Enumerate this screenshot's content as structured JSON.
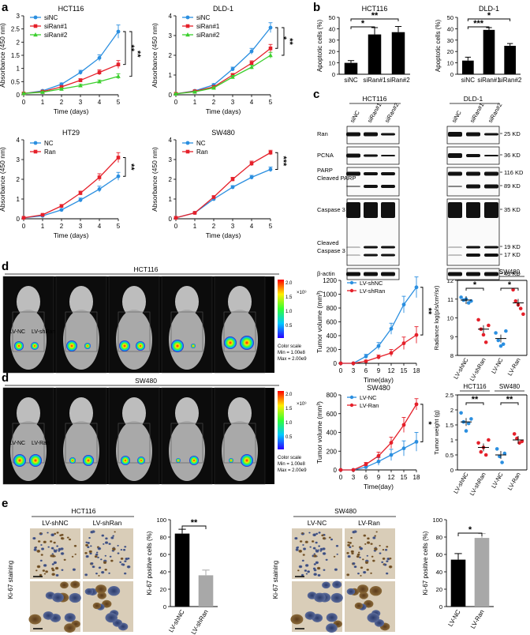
{
  "colors": {
    "blue": "#2b8fe0",
    "red": "#e5202a",
    "green": "#3ccf2e",
    "black": "#000000",
    "gray": "#a8a8a8"
  },
  "panel_letters": {
    "a": "a",
    "b": "b",
    "c": "c",
    "d1": "d",
    "d2": "d",
    "e": "e"
  },
  "stars": {
    "s1": "*",
    "s2": "**",
    "s3": "***"
  },
  "chart_data": [
    {
      "id": "a1",
      "type": "line",
      "title": "HCT116",
      "xlabel": "Time (days)",
      "ylabel": "Absorbance (450 nm)",
      "x": [
        0,
        1,
        2,
        3,
        4,
        5
      ],
      "xlim": [
        0,
        5
      ],
      "ylim": [
        0,
        3
      ],
      "yticks": [
        0,
        0.5,
        1,
        1.5,
        2,
        2.5,
        3
      ],
      "xticks": [
        0,
        1,
        2,
        3,
        4,
        5
      ],
      "series": [
        {
          "name": "siNC",
          "color": "#2b8fe0",
          "marker": "circle",
          "values": [
            0.05,
            0.15,
            0.4,
            0.85,
            1.4,
            2.4
          ],
          "err": [
            0.02,
            0.03,
            0.05,
            0.08,
            0.12,
            0.25
          ]
        },
        {
          "name": "siRan#1",
          "color": "#e5202a",
          "marker": "square",
          "values": [
            0.05,
            0.12,
            0.3,
            0.55,
            0.85,
            1.15
          ],
          "err": [
            0.02,
            0.03,
            0.04,
            0.06,
            0.1,
            0.15
          ]
        },
        {
          "name": "siRan#2",
          "color": "#3ccf2e",
          "marker": "triangle",
          "values": [
            0.05,
            0.1,
            0.22,
            0.35,
            0.5,
            0.7
          ],
          "err": [
            0.02,
            0.02,
            0.03,
            0.05,
            0.06,
            0.1
          ]
        }
      ],
      "sig": [
        "**",
        "**"
      ]
    },
    {
      "id": "a2",
      "type": "line",
      "title": "DLD-1",
      "xlabel": "Time (days)",
      "ylabel": "Absorbance (450 nm)",
      "x": [
        0,
        1,
        2,
        3,
        4,
        5
      ],
      "xlim": [
        0,
        5
      ],
      "ylim": [
        0,
        4
      ],
      "yticks": [
        0,
        1,
        2,
        3,
        4
      ],
      "xticks": [
        0,
        1,
        2,
        3,
        4,
        5
      ],
      "series": [
        {
          "name": "siNC",
          "color": "#2b8fe0",
          "marker": "circle",
          "values": [
            0.05,
            0.2,
            0.5,
            1.3,
            2.2,
            3.4
          ],
          "err": [
            0.02,
            0.03,
            0.06,
            0.1,
            0.15,
            0.25
          ]
        },
        {
          "name": "siRan#1",
          "color": "#e5202a",
          "marker": "square",
          "values": [
            0.05,
            0.18,
            0.4,
            1.0,
            1.6,
            2.35
          ],
          "err": [
            0.02,
            0.03,
            0.05,
            0.08,
            0.12,
            0.2
          ]
        },
        {
          "name": "siRan#2",
          "color": "#3ccf2e",
          "marker": "triangle",
          "values": [
            0.05,
            0.15,
            0.35,
            0.9,
            1.4,
            2.0
          ],
          "err": [
            0.02,
            0.03,
            0.05,
            0.08,
            0.1,
            0.15
          ]
        }
      ],
      "sig": [
        "*",
        "**"
      ]
    },
    {
      "id": "a3",
      "type": "line",
      "title": "HT29",
      "xlabel": "Time (days)",
      "ylabel": "Absorbance (450 nm)",
      "x": [
        0,
        1,
        2,
        3,
        4,
        5
      ],
      "xlim": [
        0,
        5
      ],
      "ylim": [
        0,
        4
      ],
      "yticks": [
        0,
        1,
        2,
        3,
        4
      ],
      "xticks": [
        0,
        1,
        2,
        3,
        4,
        5
      ],
      "series": [
        {
          "name": "NC",
          "color": "#2b8fe0",
          "marker": "circle",
          "values": [
            0.05,
            0.15,
            0.45,
            0.95,
            1.5,
            2.15
          ],
          "err": [
            0.02,
            0.03,
            0.05,
            0.1,
            0.15,
            0.2
          ]
        },
        {
          "name": "Ran",
          "color": "#e5202a",
          "marker": "square",
          "values": [
            0.05,
            0.2,
            0.65,
            1.3,
            2.1,
            3.1
          ],
          "err": [
            0.02,
            0.03,
            0.06,
            0.1,
            0.18,
            0.25
          ]
        }
      ],
      "sig": [
        "**"
      ]
    },
    {
      "id": "a4",
      "type": "line",
      "title": "SW480",
      "xlabel": "Time (days)",
      "ylabel": "Absorbance (450 nm)",
      "x": [
        0,
        1,
        2,
        3,
        4,
        5
      ],
      "xlim": [
        0,
        5
      ],
      "ylim": [
        0,
        4
      ],
      "yticks": [
        0,
        1,
        2,
        3,
        4
      ],
      "xticks": [
        0,
        1,
        2,
        3,
        4,
        5
      ],
      "series": [
        {
          "name": "NC",
          "color": "#2b8fe0",
          "marker": "circle",
          "values": [
            0.05,
            0.3,
            1.0,
            1.6,
            2.1,
            2.5
          ],
          "err": [
            0.02,
            0.03,
            0.05,
            0.08,
            0.1,
            0.12
          ]
        },
        {
          "name": "Ran",
          "color": "#e5202a",
          "marker": "square",
          "values": [
            0.05,
            0.3,
            1.1,
            2.0,
            2.8,
            3.35
          ],
          "err": [
            0.02,
            0.03,
            0.06,
            0.1,
            0.12,
            0.12
          ]
        }
      ],
      "sig": [
        "***"
      ]
    },
    {
      "id": "b1",
      "type": "bar",
      "title": "HCT116",
      "ylabel": "Apoptotic cells (%)",
      "categories": [
        "siNC",
        "siRan#1",
        "siRan#2"
      ],
      "values": [
        10,
        35,
        37
      ],
      "err": [
        2,
        6,
        5
      ],
      "ylim": [
        0,
        50
      ],
      "yticks": [
        0,
        10,
        20,
        30,
        40,
        50
      ],
      "sig": [
        "*",
        "**"
      ]
    },
    {
      "id": "b2",
      "type": "bar",
      "title": "DLD-1",
      "ylabel": "Apoptotic cells (%)",
      "categories": [
        "siNC",
        "siRan#1",
        "siRan#2"
      ],
      "values": [
        12,
        39,
        25
      ],
      "err": [
        3,
        2,
        2
      ],
      "ylim": [
        0,
        50
      ],
      "yticks": [
        0,
        10,
        20,
        30,
        40,
        50
      ],
      "sig": [
        "***",
        "*"
      ]
    },
    {
      "id": "d1v",
      "type": "line",
      "title": "HCT116",
      "xlabel": "Time(day)",
      "ylabel": "Tumor volume (mm³)",
      "x": [
        0,
        3,
        6,
        9,
        12,
        15,
        18
      ],
      "xlim": [
        0,
        18
      ],
      "ylim": [
        0,
        1200
      ],
      "yticks": [
        0,
        200,
        400,
        600,
        800,
        1000,
        1200
      ],
      "xticks": [
        0,
        3,
        6,
        9,
        12,
        15,
        18
      ],
      "series": [
        {
          "name": "LV-shNC",
          "color": "#2b8fe0",
          "marker": "circle",
          "values": [
            0,
            0,
            100,
            250,
            500,
            850,
            1100
          ],
          "err": [
            0,
            0,
            30,
            50,
            80,
            120,
            150
          ]
        },
        {
          "name": "LV-shRan",
          "color": "#e5202a",
          "marker": "circle",
          "values": [
            0,
            0,
            30,
            90,
            150,
            290,
            410
          ],
          "err": [
            0,
            0,
            15,
            30,
            50,
            90,
            120
          ]
        }
      ],
      "sig": [
        "**"
      ]
    },
    {
      "id": "d2v",
      "type": "line",
      "title": "SW480",
      "xlabel": "Time(day)",
      "ylabel": "Tumor volume (mm³)",
      "x": [
        0,
        3,
        6,
        9,
        12,
        15,
        18
      ],
      "xlim": [
        0,
        18
      ],
      "ylim": [
        0,
        800
      ],
      "yticks": [
        0,
        200,
        400,
        600,
        800
      ],
      "xticks": [
        0,
        3,
        6,
        9,
        12,
        15,
        18
      ],
      "series": [
        {
          "name": "LV-NC",
          "color": "#2b8fe0",
          "marker": "circle",
          "values": [
            0,
            0,
            30,
            90,
            160,
            230,
            300
          ],
          "err": [
            0,
            0,
            15,
            40,
            60,
            80,
            100
          ]
        },
        {
          "name": "LV-Ran",
          "color": "#e5202a",
          "marker": "circle",
          "values": [
            0,
            0,
            60,
            150,
            290,
            480,
            700
          ],
          "err": [
            0,
            0,
            20,
            40,
            60,
            80,
            60
          ]
        }
      ],
      "sig": [
        "*"
      ]
    },
    {
      "id": "d1s",
      "type": "scatter",
      "ylabel": "Radiance log(p/s/cm²/sr)",
      "groups_header": [
        "HCT116",
        "SW480"
      ],
      "categories": [
        "LV-shNC",
        "LV-shRan",
        "LV-NC",
        "LV-Ran"
      ],
      "ylim": [
        8,
        12
      ],
      "yticks": [
        8,
        9,
        10,
        11,
        12
      ],
      "points": [
        [
          11.1,
          10.95,
          11.0,
          10.8,
          10.9
        ],
        [
          9.9,
          9.4,
          9.1,
          8.7,
          9.6
        ],
        [
          9.2,
          8.8,
          8.5,
          8.6,
          9.3
        ],
        [
          11.5,
          10.9,
          10.7,
          10.5,
          10.2
        ]
      ],
      "means": [
        10.95,
        9.4,
        8.9,
        10.8
      ],
      "sig": [
        "*",
        "*"
      ]
    },
    {
      "id": "d2s",
      "type": "scatter",
      "ylabel": "Tumor weight (g)",
      "groups_header": [
        "HCT116",
        "SW480"
      ],
      "categories": [
        "LV-shNC",
        "LV-shRan",
        "LV-NC",
        "LV-Ran"
      ],
      "ylim": [
        0,
        2.5
      ],
      "yticks": [
        0,
        0.5,
        1,
        1.5,
        2,
        2.5
      ],
      "points": [
        [
          1.9,
          1.6,
          1.3,
          1.55,
          1.7
        ],
        [
          0.9,
          0.6,
          0.75,
          0.5,
          1.0
        ],
        [
          0.7,
          0.45,
          0.25,
          0.55
        ],
        [
          1.2,
          1.05,
          0.9,
          0.95
        ]
      ],
      "means": [
        1.6,
        0.75,
        0.5,
        1.0
      ],
      "sig": [
        "**",
        "**"
      ]
    },
    {
      "id": "e1",
      "type": "bar",
      "ylabel": "Ki-67 positive cells (%)",
      "categories": [
        "LV-shNC",
        "LV-shRan"
      ],
      "values": [
        84,
        36
      ],
      "err": [
        5,
        6
      ],
      "colors": [
        "#000000",
        "#a8a8a8"
      ],
      "ylim": [
        0,
        100
      ],
      "yticks": [
        0,
        20,
        40,
        60,
        80,
        100
      ],
      "sig": [
        "**"
      ]
    },
    {
      "id": "e2",
      "type": "bar",
      "ylabel": "Ki-67 positive cells (%)",
      "categories": [
        "LV-NC",
        "LV-Ran"
      ],
      "values": [
        54,
        79
      ],
      "err": [
        7,
        5
      ],
      "colors": [
        "#000000",
        "#a8a8a8"
      ],
      "ylim": [
        0,
        100
      ],
      "yticks": [
        0,
        20,
        40,
        60,
        80,
        100
      ],
      "sig": [
        "*"
      ]
    }
  ],
  "western": {
    "groups": [
      "HCT116",
      "DLD-1"
    ],
    "lanes": [
      "siNC",
      "siRan#1",
      "siRan#2"
    ],
    "rows": [
      "Ran",
      "PCNA",
      "PARP",
      "Cleaved PARP",
      "Caspase 3",
      "Cleaved",
      "Caspase 3",
      "β-actin"
    ],
    "kd": [
      "25 KD",
      "36 KD",
      "116 KD",
      "89 KD",
      "35 KD",
      "19 KD",
      "17 KD",
      "43 KD"
    ]
  },
  "imaging": {
    "d1_title": "HCT116",
    "d2_title": "SW480",
    "mouse_labels": [
      "LV-NC",
      "LV-shRan",
      "LV-NC",
      "LV-Ran"
    ],
    "scale_ticks": [
      "2.0",
      "1.5",
      "1.0",
      "0.5"
    ],
    "scale_exp": "×10⁹",
    "color_scale": [
      "Color scale",
      "Min = 1.00e8",
      "Max = 2.00e9"
    ]
  },
  "ihc": {
    "left_title": "HCT116",
    "right_title": "SW480",
    "left_cols": [
      "LV-shNC",
      "LV-shRan"
    ],
    "right_cols": [
      "LV-NC",
      "LV-Ran"
    ],
    "side_label": "Ki-67 staining"
  }
}
